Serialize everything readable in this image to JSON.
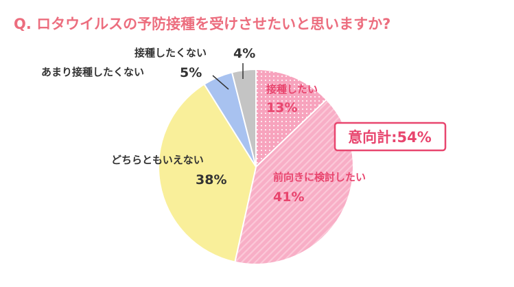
{
  "chart_data": {
    "type": "pie",
    "title": "Q. ロタウイルスの予防接種を受けさせたいと思いますか?",
    "slices": [
      {
        "label": "接種したい",
        "value": 13,
        "value_label": "13%",
        "color": "#f7a3bd"
      },
      {
        "label": "前向きに検討したい",
        "value": 41,
        "value_label": "41%",
        "color": "#f8aec6"
      },
      {
        "label": "どちらともいえない",
        "value": 38,
        "value_label": "38%",
        "color": "#f9ef9a"
      },
      {
        "label": "あまり接種したくない",
        "value": 5,
        "value_label": "5%",
        "color": "#a8c2f0"
      },
      {
        "label": "接種したくない",
        "value": 4,
        "value_label": "4%",
        "color": "#c4c4c4"
      }
    ],
    "annotation": "意向計:54%",
    "accent_color": "#e8456e"
  }
}
